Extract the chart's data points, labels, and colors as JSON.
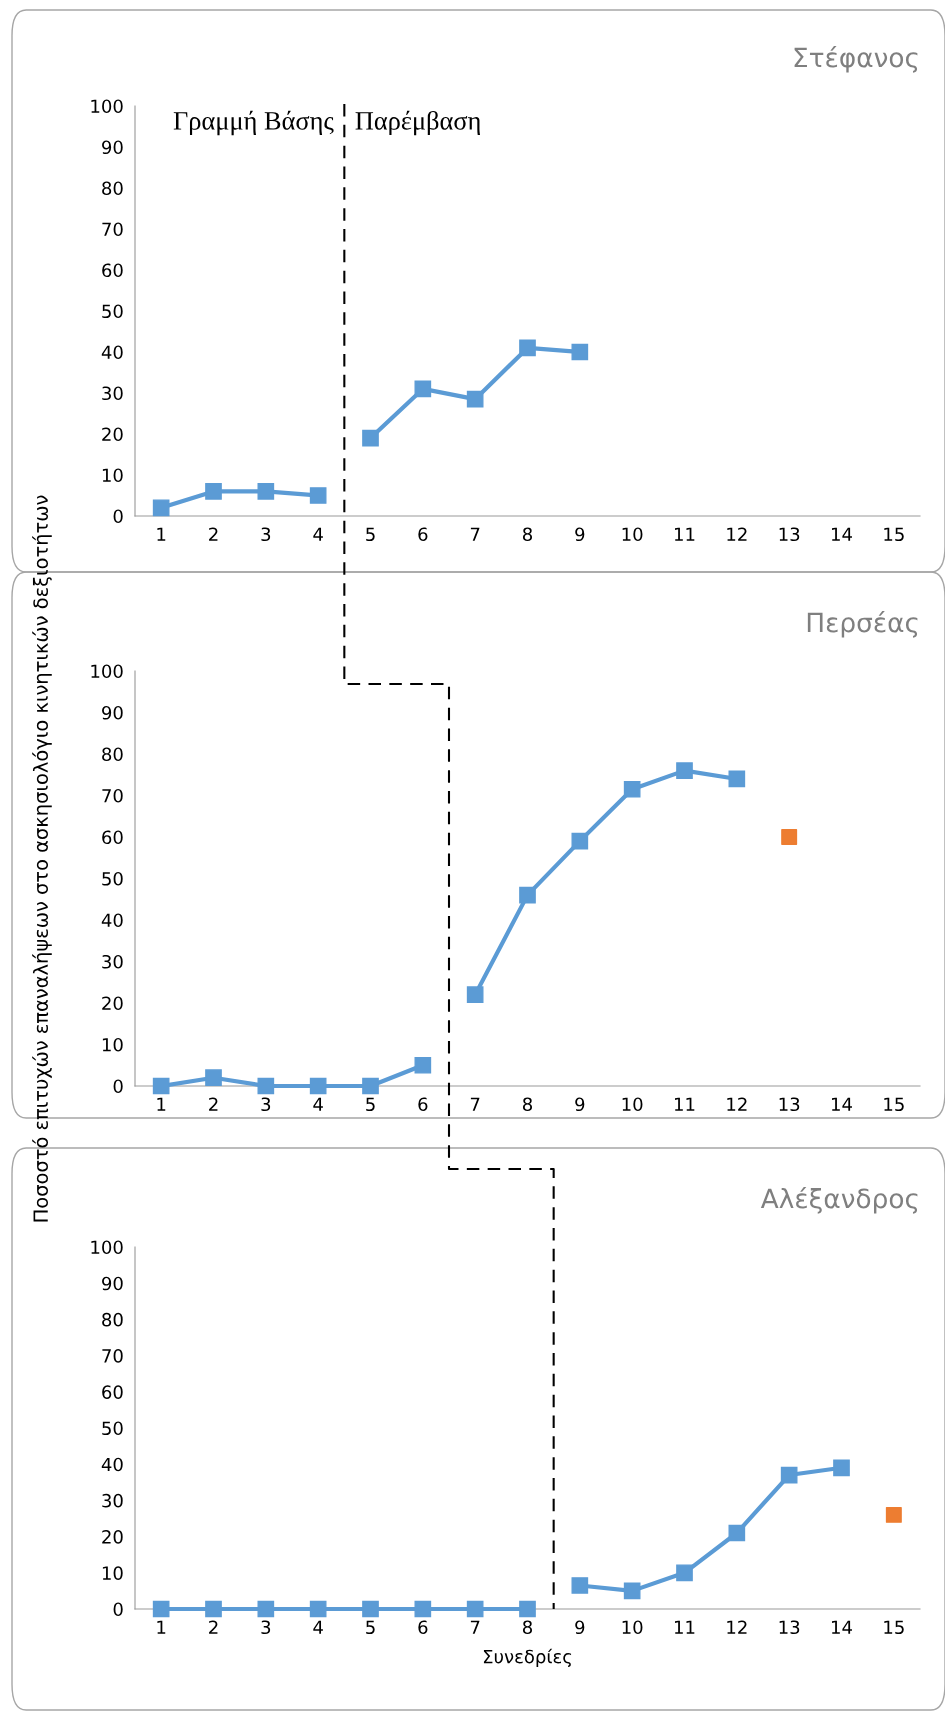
{
  "chart_data": [
    {
      "type": "line",
      "title": "Στέφανος",
      "ylabel": "Ποσοστό επιτυχών επαναλήψεων στο ασκησιολόγιο κινητικών δεξιοτήτων",
      "categories": [
        "1",
        "2",
        "3",
        "4",
        "5",
        "6",
        "7",
        "8",
        "9",
        "10",
        "11",
        "12",
        "13",
        "14",
        "15"
      ],
      "ylim": [
        0,
        100
      ],
      "yticks": [
        0,
        10,
        20,
        30,
        40,
        50,
        60,
        70,
        80,
        90,
        100
      ],
      "grid": false,
      "marker": "square",
      "line_style": "solid",
      "annotations": [
        "Γραμμή Βάσης",
        "Παρέμβαση"
      ],
      "series": [
        {
          "color": "#5b9bd5",
          "values": [
            2,
            6,
            6,
            5,
            null,
            null,
            null,
            null,
            null,
            null,
            null,
            null,
            null,
            null,
            null
          ]
        },
        {
          "color": "#5b9bd5",
          "values": [
            null,
            null,
            null,
            null,
            19,
            31,
            28.5,
            41,
            40,
            null,
            null,
            null,
            null,
            null,
            null
          ]
        }
      ]
    },
    {
      "type": "line",
      "title": "Περσέας",
      "categories": [
        "1",
        "2",
        "3",
        "4",
        "5",
        "6",
        "7",
        "8",
        "9",
        "10",
        "11",
        "12",
        "13",
        "14",
        "15"
      ],
      "ylim": [
        0,
        100
      ],
      "yticks": [
        0,
        10,
        20,
        30,
        40,
        50,
        60,
        70,
        80,
        90,
        100
      ],
      "grid": false,
      "marker": "square",
      "line_style": "solid",
      "series": [
        {
          "color": "#5b9bd5",
          "values": [
            0,
            2,
            0,
            0,
            0,
            5,
            null,
            null,
            null,
            null,
            null,
            null,
            null,
            null,
            null
          ]
        },
        {
          "color": "#5b9bd5",
          "values": [
            null,
            null,
            null,
            null,
            null,
            null,
            22,
            46,
            59,
            71.5,
            76,
            74,
            null,
            null,
            null
          ]
        },
        {
          "type": "scatter",
          "color": "#ed7d31",
          "values": [
            null,
            null,
            null,
            null,
            null,
            null,
            null,
            null,
            null,
            null,
            null,
            null,
            60,
            null,
            null
          ]
        }
      ]
    },
    {
      "type": "line",
      "title": "Αλέξανδρος",
      "xlabel": "Συνεδρίες",
      "categories": [
        "1",
        "2",
        "3",
        "4",
        "5",
        "6",
        "7",
        "8",
        "9",
        "10",
        "11",
        "12",
        "13",
        "14",
        "15"
      ],
      "ylim": [
        0,
        100
      ],
      "yticks": [
        0,
        10,
        20,
        30,
        40,
        50,
        60,
        70,
        80,
        90,
        100
      ],
      "grid": false,
      "marker": "square",
      "line_style": "solid",
      "series": [
        {
          "color": "#5b9bd5",
          "values": [
            0,
            0,
            0,
            0,
            0,
            0,
            0,
            0,
            null,
            null,
            null,
            null,
            null,
            null,
            null
          ]
        },
        {
          "color": "#5b9bd5",
          "values": [
            null,
            null,
            null,
            null,
            null,
            null,
            null,
            null,
            6.5,
            5,
            10,
            21,
            37,
            39,
            null
          ]
        },
        {
          "type": "scatter",
          "color": "#ed7d31",
          "values": [
            null,
            null,
            null,
            null,
            null,
            null,
            null,
            null,
            null,
            null,
            null,
            null,
            null,
            null,
            26
          ]
        }
      ]
    }
  ]
}
